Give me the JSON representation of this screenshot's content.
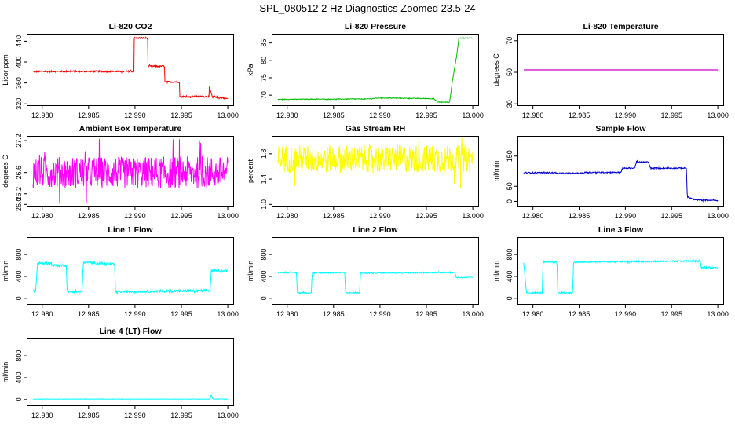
{
  "page": {
    "title": "SPL_080512  2 Hz Diagnostics Zoomed 23.5-24"
  },
  "chart_data": [
    {
      "type": "line",
      "title": "Li-820 CO2",
      "ylabel": "Licor ppm",
      "xlim": [
        12.979,
        13.0
      ],
      "ylim": [
        320,
        450
      ],
      "xticks": [
        "12.980",
        "12.985",
        "12.990",
        "12.995",
        "13.000"
      ],
      "xtick_values": [
        12.98,
        12.985,
        12.99,
        12.995,
        13.0
      ],
      "yticks": [
        "320",
        "360",
        "400",
        "440"
      ],
      "ytick_values": [
        320,
        360,
        400,
        440
      ],
      "color": "#ff0000",
      "noise": 1.5,
      "series": [
        {
          "x": [
            12.979,
            12.9899,
            12.9899,
            12.9914,
            12.9914,
            12.9932,
            12.9932,
            12.9948,
            12.9948,
            12.998,
            12.998,
            12.9984,
            12.9984,
            13.0
          ],
          "y": [
            382,
            382,
            446,
            446,
            392,
            392,
            362,
            362,
            334,
            334,
            352,
            330,
            334,
            330
          ]
        }
      ]
    },
    {
      "type": "line",
      "title": "Li-820 Pressure",
      "ylabel": "kPa",
      "xlim": [
        12.979,
        13.0
      ],
      "ylim": [
        67.5,
        87
      ],
      "xticks": [
        "12.980",
        "12.985",
        "12.990",
        "12.995",
        "13.000"
      ],
      "xtick_values": [
        12.98,
        12.985,
        12.99,
        12.995,
        13.0
      ],
      "yticks": [
        "70",
        "75",
        "80",
        "85"
      ],
      "ytick_values": [
        70,
        75,
        80,
        85
      ],
      "color": "#00bb00",
      "noise": 0.1,
      "series": [
        {
          "x": [
            12.979,
            12.9885,
            12.99,
            12.9958,
            12.9962,
            12.9975,
            12.9978,
            12.9983,
            12.9985,
            13.0
          ],
          "y": [
            68.8,
            68.9,
            69.2,
            69.0,
            68.0,
            68.0,
            74.0,
            82.0,
            86.4,
            86.4
          ]
        }
      ]
    },
    {
      "type": "line",
      "title": "Li-820 Temperature",
      "ylabel": "degrees C",
      "xlim": [
        12.979,
        13.0
      ],
      "ylim": [
        30,
        73
      ],
      "xticks": [
        "12.980",
        "12.985",
        "12.990",
        "12.995",
        "13.000"
      ],
      "xtick_values": [
        12.98,
        12.985,
        12.99,
        12.995,
        13.0
      ],
      "yticks": [
        "30",
        "50",
        "70"
      ],
      "ytick_values": [
        30,
        50,
        70
      ],
      "color": "#cc00cc",
      "noise": 0,
      "series": [
        {
          "x": [
            12.979,
            13.0
          ],
          "y": [
            51.5,
            51.5
          ]
        }
      ]
    },
    {
      "type": "line",
      "title": "Ambient Box Temperature",
      "ylabel": "degrees C",
      "xlim": [
        12.979,
        13.0
      ],
      "ylim": [
        26.0,
        27.25
      ],
      "xticks": [
        "12.980",
        "12.985",
        "12.990",
        "12.995",
        "13.000"
      ],
      "xtick_values": [
        12.98,
        12.985,
        12.99,
        12.995,
        13.0
      ],
      "yticks": [
        "26.0",
        "26.2",
        "26.6",
        "27.2"
      ],
      "ytick_values": [
        26.0,
        26.2,
        26.6,
        27.2
      ],
      "color": "#ff00ff",
      "noise": 0.3,
      "series": [
        {
          "x": [
            12.979,
            13.0
          ],
          "y": [
            26.6,
            26.6
          ]
        }
      ]
    },
    {
      "type": "line",
      "title": "Gas Stream RH",
      "ylabel": "percent",
      "xlim": [
        12.979,
        13.0
      ],
      "ylim": [
        1.0,
        2.05
      ],
      "xticks": [
        "12.980",
        "12.985",
        "12.990",
        "12.995",
        "13.000"
      ],
      "xtick_values": [
        12.98,
        12.985,
        12.99,
        12.995,
        13.0
      ],
      "yticks": [
        "1.0",
        "1.4",
        "1.8"
      ],
      "ytick_values": [
        1.0,
        1.4,
        1.8
      ],
      "color": "#ffff00",
      "noise": 0.22,
      "series": [
        {
          "x": [
            12.979,
            13.0
          ],
          "y": [
            1.72,
            1.72
          ]
        }
      ]
    },
    {
      "type": "line",
      "title": "Sample Flow",
      "ylabel": "ml/min",
      "xlim": [
        12.979,
        13.0
      ],
      "ylim": [
        -10,
        210
      ],
      "xticks": [
        "12.980",
        "12.985",
        "12.990",
        "12.995",
        "13.000"
      ],
      "xtick_values": [
        12.98,
        12.985,
        12.99,
        12.995,
        13.0
      ],
      "yticks": [
        "0",
        "50",
        "150"
      ],
      "ytick_values": [
        0,
        50,
        150
      ],
      "color": "#0000cc",
      "noise": 2,
      "series": [
        {
          "x": [
            12.979,
            12.9825,
            12.9826,
            12.9855,
            12.9856,
            12.9895,
            12.9897,
            12.991,
            12.9912,
            12.9925,
            12.9927,
            12.9966,
            12.9967,
            12.9975,
            13.0
          ],
          "y": [
            95,
            95,
            93,
            93,
            96,
            96,
            110,
            110,
            130,
            130,
            110,
            110,
            15,
            5,
            3
          ]
        }
      ]
    },
    {
      "type": "line",
      "title": "Line 1 Flow",
      "ylabel": "ml/min",
      "xlim": [
        12.979,
        13.0
      ],
      "ylim": [
        -80,
        1080
      ],
      "xticks": [
        "12.980",
        "12.985",
        "12.990",
        "12.995",
        "13.000"
      ],
      "xtick_values": [
        12.98,
        12.985,
        12.99,
        12.995,
        13.0
      ],
      "yticks": [
        "0",
        "400",
        "800"
      ],
      "ytick_values": [
        0,
        400,
        800
      ],
      "color": "#00ffff",
      "noise": 22,
      "series": [
        {
          "x": [
            12.979,
            12.9793,
            12.9795,
            12.981,
            12.981,
            12.9826,
            12.9827,
            12.9843,
            12.9844,
            12.9845,
            12.9878,
            12.9879,
            12.9981,
            12.9982,
            13.0
          ],
          "y": [
            130,
            130,
            640,
            640,
            600,
            600,
            120,
            120,
            600,
            660,
            620,
            120,
            140,
            500,
            500
          ]
        }
      ]
    },
    {
      "type": "line",
      "title": "Line 2 Flow",
      "ylabel": "ml/min",
      "xlim": [
        12.979,
        13.0
      ],
      "ylim": [
        -80,
        1080
      ],
      "xticks": [
        "12.980",
        "12.985",
        "12.990",
        "12.995",
        "13.000"
      ],
      "xtick_values": [
        12.98,
        12.985,
        12.99,
        12.995,
        13.0
      ],
      "yticks": [
        "0",
        "400",
        "800"
      ],
      "ytick_values": [
        0,
        400,
        800
      ],
      "color": "#00ffff",
      "noise": 10,
      "series": [
        {
          "x": [
            12.979,
            12.981,
            12.9811,
            12.9826,
            12.9827,
            12.9862,
            12.9863,
            12.9878,
            12.9879,
            12.9981,
            12.9982,
            13.0
          ],
          "y": [
            470,
            470,
            100,
            100,
            460,
            470,
            100,
            100,
            460,
            470,
            380,
            380
          ]
        }
      ]
    },
    {
      "type": "line",
      "title": "Line 3 Flow",
      "ylabel": "ml/min",
      "xlim": [
        12.979,
        13.0
      ],
      "ylim": [
        -80,
        1080
      ],
      "xticks": [
        "12.980",
        "12.985",
        "12.990",
        "12.995",
        "13.000"
      ],
      "xtick_values": [
        12.98,
        12.985,
        12.99,
        12.995,
        13.0
      ],
      "yticks": [
        "0",
        "400",
        "800"
      ],
      "ytick_values": [
        0,
        400,
        800
      ],
      "color": "#00ffff",
      "noise": 14,
      "series": [
        {
          "x": [
            12.979,
            12.9793,
            12.9794,
            12.981,
            12.9811,
            12.9826,
            12.9827,
            12.9843,
            12.9844,
            12.9845,
            12.9981,
            12.9982,
            13.0
          ],
          "y": [
            650,
            100,
            100,
            100,
            660,
            660,
            100,
            100,
            640,
            660,
            680,
            560,
            560
          ]
        }
      ]
    },
    {
      "type": "line",
      "title": "Line 4 (LT) Flow",
      "ylabel": "ml/min",
      "xlim": [
        12.979,
        13.0
      ],
      "ylim": [
        -80,
        1080
      ],
      "xticks": [
        "12.980",
        "12.985",
        "12.990",
        "12.995",
        "13.000"
      ],
      "xtick_values": [
        12.98,
        12.985,
        12.99,
        12.995,
        13.0
      ],
      "yticks": [
        "0",
        "400",
        "800"
      ],
      "ytick_values": [
        0,
        400,
        800
      ],
      "color": "#00ffff",
      "noise": 3,
      "series": [
        {
          "x": [
            12.979,
            12.9981,
            12.9982,
            12.9984,
            13.0
          ],
          "y": [
            10,
            10,
            90,
            12,
            10
          ]
        }
      ]
    }
  ]
}
